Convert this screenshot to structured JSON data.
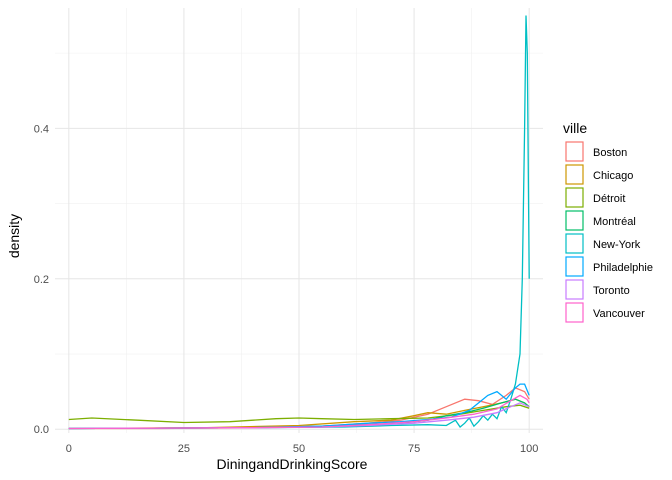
{
  "chart_data": {
    "type": "line",
    "title": "",
    "xlabel": "DiningandDrinkingScore",
    "ylabel": "density",
    "xlim": [
      -3,
      103
    ],
    "ylim": [
      -0.005,
      0.56
    ],
    "x_ticks": [
      0,
      25,
      50,
      75,
      100
    ],
    "x_tick_labels": [
      "0",
      "25",
      "50",
      "75",
      "100"
    ],
    "y_ticks": [
      0,
      0.2,
      0.4
    ],
    "y_tick_labels": [
      "0.0",
      "0.2",
      "0.4"
    ],
    "grid": true,
    "legend": {
      "title": "ville",
      "position": "right"
    },
    "series": [
      {
        "name": "Boston",
        "color": "#F8766D",
        "points": [
          [
            0,
            0.001
          ],
          [
            20,
            0.001
          ],
          [
            40,
            0.002
          ],
          [
            55,
            0.004
          ],
          [
            65,
            0.008
          ],
          [
            72,
            0.012
          ],
          [
            78,
            0.02
          ],
          [
            82,
            0.03
          ],
          [
            86,
            0.04
          ],
          [
            89,
            0.038
          ],
          [
            92,
            0.033
          ],
          [
            95,
            0.045
          ],
          [
            97,
            0.055
          ],
          [
            99,
            0.05
          ],
          [
            100,
            0.04
          ]
        ]
      },
      {
        "name": "Chicago",
        "color": "#CD9600",
        "points": [
          [
            0,
            0.001
          ],
          [
            30,
            0.002
          ],
          [
            50,
            0.005
          ],
          [
            62,
            0.01
          ],
          [
            70,
            0.012
          ],
          [
            75,
            0.018
          ],
          [
            78,
            0.022
          ],
          [
            82,
            0.02
          ],
          [
            86,
            0.025
          ],
          [
            90,
            0.03
          ],
          [
            94,
            0.035
          ],
          [
            97,
            0.04
          ],
          [
            99,
            0.035
          ],
          [
            100,
            0.03
          ]
        ]
      },
      {
        "name": "Détroit",
        "color": "#7CAE00",
        "points": [
          [
            0,
            0.013
          ],
          [
            5,
            0.015
          ],
          [
            15,
            0.012
          ],
          [
            25,
            0.009
          ],
          [
            35,
            0.01
          ],
          [
            45,
            0.014
          ],
          [
            50,
            0.015
          ],
          [
            55,
            0.014
          ],
          [
            62,
            0.013
          ],
          [
            70,
            0.014
          ],
          [
            78,
            0.015
          ],
          [
            85,
            0.02
          ],
          [
            90,
            0.025
          ],
          [
            95,
            0.03
          ],
          [
            98,
            0.032
          ],
          [
            100,
            0.028
          ]
        ]
      },
      {
        "name": "Montréal",
        "color": "#00BE67",
        "points": [
          [
            0,
            0.001
          ],
          [
            40,
            0.002
          ],
          [
            55,
            0.004
          ],
          [
            65,
            0.006
          ],
          [
            72,
            0.008
          ],
          [
            78,
            0.012
          ],
          [
            82,
            0.018
          ],
          [
            86,
            0.022
          ],
          [
            90,
            0.028
          ],
          [
            94,
            0.035
          ],
          [
            97,
            0.04
          ],
          [
            99,
            0.035
          ],
          [
            100,
            0.03
          ]
        ]
      },
      {
        "name": "New-York",
        "color": "#00BFC4",
        "points": [
          [
            0,
            0.001
          ],
          [
            40,
            0.002
          ],
          [
            60,
            0.003
          ],
          [
            70,
            0.005
          ],
          [
            78,
            0.006
          ],
          [
            82,
            0.005
          ],
          [
            84,
            0.012
          ],
          [
            85,
            0.003
          ],
          [
            86,
            0.008
          ],
          [
            87,
            0.015
          ],
          [
            88,
            0.004
          ],
          [
            89,
            0.01
          ],
          [
            90,
            0.018
          ],
          [
            91,
            0.012
          ],
          [
            92,
            0.02
          ],
          [
            93,
            0.014
          ],
          [
            94,
            0.03
          ],
          [
            95,
            0.022
          ],
          [
            96,
            0.04
          ],
          [
            97,
            0.06
          ],
          [
            98,
            0.1
          ],
          [
            98.5,
            0.2
          ],
          [
            99,
            0.4
          ],
          [
            99.3,
            0.55
          ],
          [
            99.6,
            0.5
          ],
          [
            100,
            0.2
          ]
        ]
      },
      {
        "name": "Philadelphie",
        "color": "#00A9FF",
        "points": [
          [
            0,
            0.001
          ],
          [
            40,
            0.002
          ],
          [
            55,
            0.004
          ],
          [
            65,
            0.008
          ],
          [
            72,
            0.01
          ],
          [
            78,
            0.013
          ],
          [
            83,
            0.016
          ],
          [
            87,
            0.025
          ],
          [
            91,
            0.045
          ],
          [
            93,
            0.05
          ],
          [
            95,
            0.04
          ],
          [
            97,
            0.055
          ],
          [
            98,
            0.06
          ],
          [
            99,
            0.06
          ],
          [
            100,
            0.045
          ]
        ]
      },
      {
        "name": "Toronto",
        "color": "#C77CFF",
        "points": [
          [
            0,
            0.001
          ],
          [
            40,
            0.002
          ],
          [
            55,
            0.003
          ],
          [
            65,
            0.005
          ],
          [
            75,
            0.008
          ],
          [
            82,
            0.012
          ],
          [
            88,
            0.016
          ],
          [
            93,
            0.022
          ],
          [
            96,
            0.03
          ],
          [
            98,
            0.035
          ],
          [
            100,
            0.03
          ]
        ]
      },
      {
        "name": "Vancouver",
        "color": "#FF61CC",
        "points": [
          [
            0,
            0.001
          ],
          [
            40,
            0.002
          ],
          [
            55,
            0.003
          ],
          [
            65,
            0.006
          ],
          [
            75,
            0.01
          ],
          [
            82,
            0.015
          ],
          [
            88,
            0.02
          ],
          [
            93,
            0.027
          ],
          [
            96,
            0.038
          ],
          [
            98,
            0.045
          ],
          [
            99.5,
            0.04
          ],
          [
            100,
            0.035
          ]
        ]
      }
    ]
  }
}
